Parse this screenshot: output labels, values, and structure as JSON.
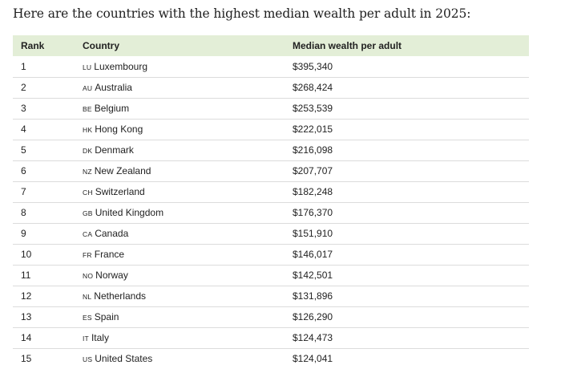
{
  "intro_text": "Here are the countries with the highest median wealth per adult in 2025:",
  "table": {
    "headers": {
      "rank": "Rank",
      "country": "Country",
      "wealth": "Median wealth per adult"
    },
    "rows": [
      {
        "rank": "1",
        "code": "LU",
        "country": "Luxembourg",
        "wealth": "$395,340"
      },
      {
        "rank": "2",
        "code": "AU",
        "country": "Australia",
        "wealth": "$268,424"
      },
      {
        "rank": "3",
        "code": "BE",
        "country": "Belgium",
        "wealth": "$253,539"
      },
      {
        "rank": "4",
        "code": "HK",
        "country": "Hong Kong",
        "wealth": "$222,015"
      },
      {
        "rank": "5",
        "code": "DK",
        "country": "Denmark",
        "wealth": "$216,098"
      },
      {
        "rank": "6",
        "code": "NZ",
        "country": "New Zealand",
        "wealth": "$207,707"
      },
      {
        "rank": "7",
        "code": "CH",
        "country": "Switzerland",
        "wealth": "$182,248"
      },
      {
        "rank": "8",
        "code": "GB",
        "country": "United Kingdom",
        "wealth": "$176,370"
      },
      {
        "rank": "9",
        "code": "CA",
        "country": "Canada",
        "wealth": "$151,910"
      },
      {
        "rank": "10",
        "code": "FR",
        "country": "France",
        "wealth": "$146,017"
      },
      {
        "rank": "11",
        "code": "NO",
        "country": "Norway",
        "wealth": "$142,501"
      },
      {
        "rank": "12",
        "code": "NL",
        "country": "Netherlands",
        "wealth": "$131,896"
      },
      {
        "rank": "13",
        "code": "ES",
        "country": "Spain",
        "wealth": "$126,290"
      },
      {
        "rank": "14",
        "code": "IT",
        "country": "Italy",
        "wealth": "$124,473"
      },
      {
        "rank": "15",
        "code": "US",
        "country": "United States",
        "wealth": "$124,041"
      }
    ]
  }
}
